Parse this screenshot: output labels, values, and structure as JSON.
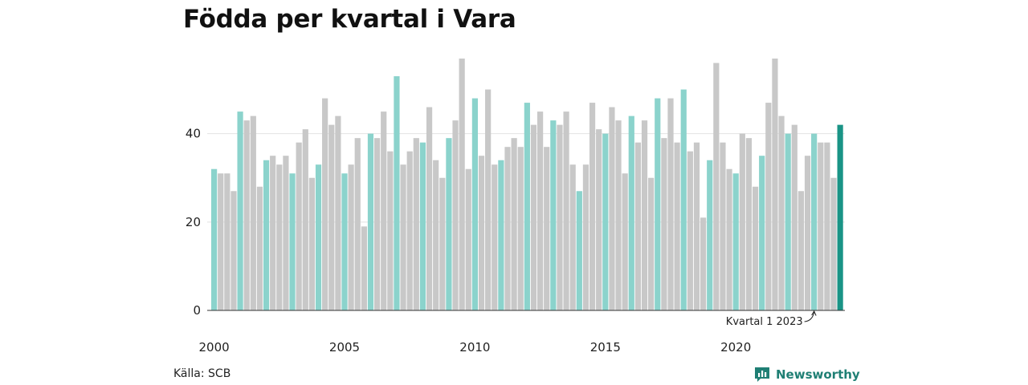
{
  "title": "Födda per kvartal i Vara",
  "source": "Källa: SCB",
  "brand": "Newsworthy",
  "colors": {
    "q1": "#8bd3cc",
    "other": "#c8c8c8",
    "latest": "#1a9486",
    "grid": "#e2e2e2",
    "axis": "#333333",
    "brand": "#1f7f74"
  },
  "chart_data": {
    "type": "bar",
    "title": "Födda per kvartal i Vara",
    "xlabel": "",
    "ylabel": "",
    "ylim": [
      0,
      57
    ],
    "yticks": [
      0,
      20,
      40
    ],
    "xtick_labels": [
      "2000",
      "2005",
      "2010",
      "2015",
      "2020"
    ],
    "grid": true,
    "start_year": 2000,
    "annotation": {
      "text": "Kvartal 1 2023"
    },
    "values": [
      32,
      31,
      31,
      27,
      45,
      43,
      44,
      28,
      34,
      35,
      33,
      35,
      31,
      38,
      41,
      30,
      33,
      48,
      42,
      44,
      31,
      33,
      39,
      19,
      40,
      39,
      45,
      36,
      53,
      33,
      36,
      39,
      38,
      46,
      34,
      30,
      39,
      43,
      57,
      32,
      48,
      35,
      50,
      33,
      34,
      37,
      39,
      37,
      47,
      42,
      45,
      37,
      43,
      42,
      45,
      33,
      27,
      33,
      47,
      41,
      40,
      46,
      43,
      31,
      44,
      38,
      43,
      30,
      48,
      39,
      48,
      38,
      50,
      36,
      38,
      21,
      34,
      56,
      38,
      32,
      31,
      40,
      39,
      28,
      35,
      47,
      57,
      44,
      40,
      42,
      27,
      35,
      40,
      38,
      38,
      30,
      42
    ]
  }
}
